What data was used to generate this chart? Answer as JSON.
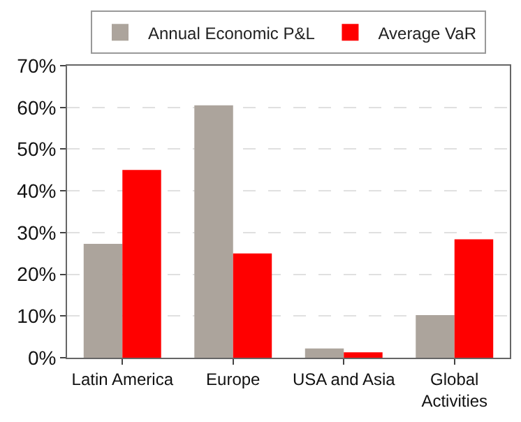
{
  "chart_data": {
    "type": "bar",
    "categories": [
      "Latin America",
      "Europe",
      "USA and Asia",
      "Global\nActivities"
    ],
    "series": [
      {
        "name": "Annual Economic P&L",
        "color": "#aca49c",
        "values": [
          27.3,
          60.5,
          2.2,
          10.2
        ]
      },
      {
        "name": "Average VaR",
        "color": "#ff0000",
        "values": [
          45,
          25,
          1.3,
          28.4
        ]
      }
    ],
    "ylim": [
      0,
      70
    ],
    "yticks": [
      {
        "value": 0,
        "label": "0%"
      },
      {
        "value": 10,
        "label": "10%"
      },
      {
        "value": 20,
        "label": "20%"
      },
      {
        "value": 30,
        "label": "30%"
      },
      {
        "value": 40,
        "label": "40%"
      },
      {
        "value": 50,
        "label": "50%"
      },
      {
        "value": 60,
        "label": "60%"
      },
      {
        "value": 70,
        "label": "70%"
      }
    ],
    "grid": "y",
    "legend": "top"
  }
}
